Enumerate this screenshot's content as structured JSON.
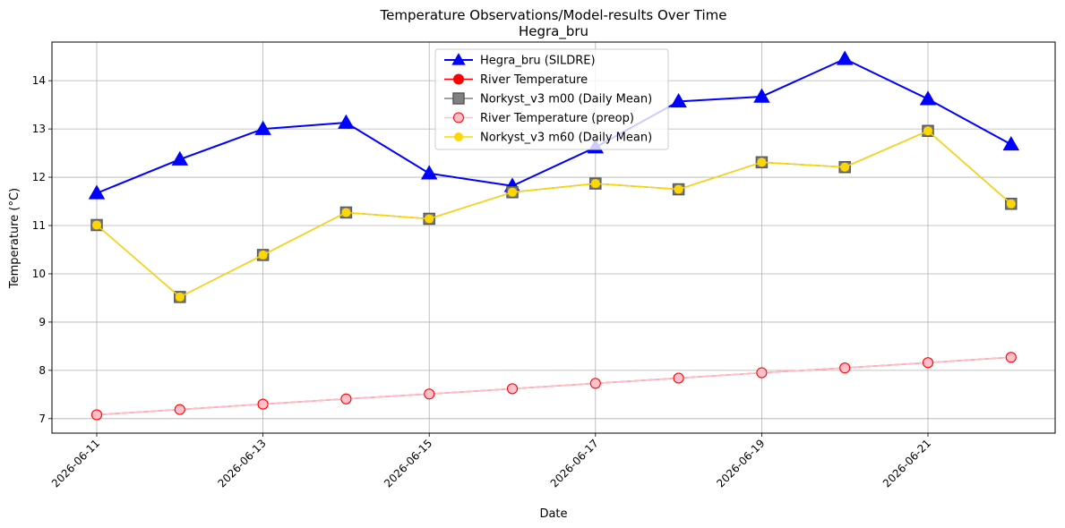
{
  "chart_data": {
    "type": "line",
    "title": "Temperature Observations/Model-results Over Time",
    "subtitle": "Hegra_bru",
    "xlabel": "Date",
    "ylabel": "Temperature (°C)",
    "x": [
      "2026-06-11",
      "2026-06-12",
      "2026-06-13",
      "2026-06-14",
      "2026-06-15",
      "2026-06-16",
      "2026-06-17",
      "2026-06-18",
      "2026-06-19",
      "2026-06-20",
      "2026-06-21",
      "2026-06-22"
    ],
    "x_tick_labels": [
      "2026-06-11",
      "2026-06-13",
      "2026-06-15",
      "2026-06-17",
      "2026-06-19",
      "2026-06-21"
    ],
    "ylim": [
      6.7,
      14.8
    ],
    "y_ticks": [
      7,
      8,
      9,
      10,
      11,
      12,
      13,
      14
    ],
    "grid": true,
    "legend_position": "top-center",
    "series": [
      {
        "name": "Hegra_bru (SILDRE)",
        "color": "#0000ff",
        "marker": "triangle",
        "values": [
          11.67,
          12.37,
          13.0,
          13.13,
          12.08,
          11.82,
          12.62,
          13.57,
          13.67,
          14.45,
          13.62,
          12.68
        ]
      },
      {
        "name": "River Temperature",
        "color": "#ff0000",
        "marker": "circle",
        "values": [
          7.08,
          7.19,
          7.3,
          7.41,
          7.51,
          7.62,
          7.73,
          7.84,
          7.95,
          8.05,
          8.16,
          8.27
        ]
      },
      {
        "name": "Norkyst_v3 m00 (Daily Mean)",
        "color": "#808080",
        "marker": "square",
        "values": [
          11.01,
          9.52,
          10.39,
          11.27,
          11.14,
          11.69,
          11.87,
          11.75,
          12.31,
          12.21,
          12.96,
          11.45
        ]
      },
      {
        "name": "River Temperature (preop)",
        "color": "#ffc0cb",
        "marker": "circle",
        "values": [
          7.08,
          7.19,
          7.3,
          7.41,
          7.51,
          7.62,
          7.73,
          7.84,
          7.95,
          8.05,
          8.16,
          8.27
        ]
      },
      {
        "name": "Norkyst_v3 m60 (Daily Mean)",
        "color": "#ffd700",
        "marker": "circle",
        "values": [
          11.01,
          9.52,
          10.39,
          11.27,
          11.14,
          11.69,
          11.87,
          11.75,
          12.31,
          12.21,
          12.96,
          11.45
        ]
      }
    ]
  }
}
